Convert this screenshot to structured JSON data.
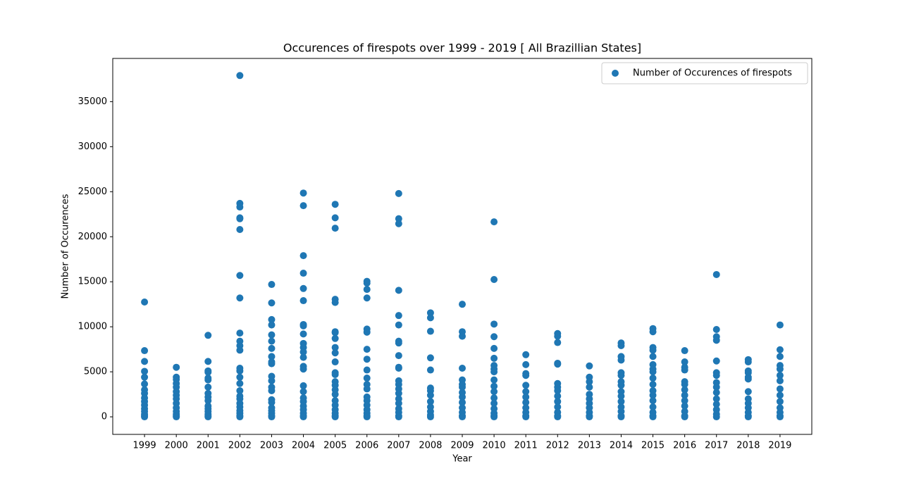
{
  "chart_data": {
    "type": "scatter",
    "title": "Occurences of firespots over 1999 - 2019 [ All Brazillian States]",
    "x_label": "Year",
    "y_label": "Number of Occurences",
    "xlim": [
      1998,
      2020
    ],
    "xticks": [
      1999,
      2000,
      2001,
      2002,
      2003,
      2004,
      2005,
      2006,
      2007,
      2008,
      2009,
      2010,
      2011,
      2012,
      2013,
      2014,
      2015,
      2016,
      2017,
      2018,
      2019
    ],
    "ylim": [
      -1950,
      39800
    ],
    "yticks": [
      0,
      5000,
      10000,
      15000,
      20000,
      25000,
      30000,
      35000
    ],
    "grid": false,
    "legend": "upper right",
    "series": [
      {
        "name": "Number of Occurences of firespots",
        "color": "#1f77b4",
        "x": [
          1999,
          1999,
          1999,
          1999,
          1999,
          1999,
          1999,
          1999,
          1999,
          1999,
          1999,
          1999,
          1999,
          1999,
          1999,
          1999,
          2000,
          2000,
          2000,
          2000,
          2000,
          2000,
          2000,
          2000,
          2000,
          2000,
          2000,
          2000,
          2000,
          2000,
          2001,
          2001,
          2001,
          2001,
          2001,
          2001,
          2001,
          2001,
          2001,
          2001,
          2001,
          2001,
          2001,
          2001,
          2001,
          2001,
          2002,
          2002,
          2002,
          2002,
          2002,
          2002,
          2002,
          2002,
          2002,
          2002,
          2002,
          2002,
          2002,
          2002,
          2002,
          2002,
          2002,
          2002,
          2002,
          2002,
          2002,
          2002,
          2002,
          2002,
          2002,
          2003,
          2003,
          2003,
          2003,
          2003,
          2003,
          2003,
          2003,
          2003,
          2003,
          2003,
          2003,
          2003,
          2003,
          2003,
          2003,
          2003,
          2003,
          2003,
          2003,
          2003,
          2004,
          2004,
          2004,
          2004,
          2004,
          2004,
          2004,
          2004,
          2004,
          2004,
          2004,
          2004,
          2004,
          2004,
          2004,
          2004,
          2004,
          2004,
          2004,
          2004,
          2004,
          2004,
          2004,
          2004,
          2005,
          2005,
          2005,
          2005,
          2005,
          2005,
          2005,
          2005,
          2005,
          2005,
          2005,
          2005,
          2005,
          2005,
          2005,
          2005,
          2005,
          2005,
          2005,
          2005,
          2005,
          2005,
          2005,
          2006,
          2006,
          2006,
          2006,
          2006,
          2006,
          2006,
          2006,
          2006,
          2006,
          2006,
          2006,
          2006,
          2006,
          2006,
          2006,
          2006,
          2006,
          2006,
          2007,
          2007,
          2007,
          2007,
          2007,
          2007,
          2007,
          2007,
          2007,
          2007,
          2007,
          2007,
          2007,
          2007,
          2007,
          2007,
          2007,
          2007,
          2007,
          2007,
          2007,
          2008,
          2008,
          2008,
          2008,
          2008,
          2008,
          2008,
          2008,
          2008,
          2008,
          2008,
          2008,
          2008,
          2009,
          2009,
          2009,
          2009,
          2009,
          2009,
          2009,
          2009,
          2009,
          2009,
          2009,
          2009,
          2009,
          2009,
          2010,
          2010,
          2010,
          2010,
          2010,
          2010,
          2010,
          2010,
          2010,
          2010,
          2010,
          2010,
          2010,
          2010,
          2010,
          2010,
          2010,
          2010,
          2011,
          2011,
          2011,
          2011,
          2011,
          2011,
          2011,
          2011,
          2011,
          2011,
          2011,
          2011,
          2012,
          2012,
          2012,
          2012,
          2012,
          2012,
          2012,
          2012,
          2012,
          2012,
          2012,
          2012,
          2012,
          2012,
          2013,
          2013,
          2013,
          2013,
          2013,
          2013,
          2013,
          2013,
          2013,
          2013,
          2013,
          2014,
          2014,
          2014,
          2014,
          2014,
          2014,
          2014,
          2014,
          2014,
          2014,
          2014,
          2014,
          2014,
          2014,
          2014,
          2015,
          2015,
          2015,
          2015,
          2015,
          2015,
          2015,
          2015,
          2015,
          2015,
          2015,
          2015,
          2015,
          2015,
          2015,
          2015,
          2015,
          2016,
          2016,
          2016,
          2016,
          2016,
          2016,
          2016,
          2016,
          2016,
          2016,
          2016,
          2016,
          2016,
          2017,
          2017,
          2017,
          2017,
          2017,
          2017,
          2017,
          2017,
          2017,
          2017,
          2017,
          2017,
          2017,
          2017,
          2017,
          2018,
          2018,
          2018,
          2018,
          2018,
          2018,
          2018,
          2018,
          2018,
          2018,
          2018,
          2018,
          2018,
          2019,
          2019,
          2019,
          2019,
          2019,
          2019,
          2019,
          2019,
          2019,
          2019,
          2019,
          2019,
          2019,
          2019
        ],
        "values": [
          12750,
          7350,
          6150,
          5050,
          4400,
          3650,
          3000,
          2600,
          2100,
          1700,
          1300,
          900,
          600,
          300,
          100,
          0,
          5500,
          4400,
          4150,
          3700,
          3300,
          2800,
          2400,
          2000,
          1500,
          1000,
          600,
          300,
          100,
          0,
          9050,
          6150,
          5100,
          4950,
          4300,
          4100,
          3300,
          2600,
          2200,
          1800,
          1200,
          900,
          600,
          300,
          100,
          0,
          37900,
          23700,
          23300,
          22100,
          22000,
          20800,
          15700,
          13200,
          9300,
          8400,
          7900,
          7400,
          5400,
          5100,
          4400,
          3700,
          2900,
          2300,
          2000,
          1500,
          1100,
          700,
          400,
          100,
          0,
          14700,
          12650,
          10800,
          10200,
          9100,
          8400,
          7600,
          6700,
          6100,
          5900,
          4500,
          4000,
          3300,
          2900,
          1900,
          1600,
          1000,
          700,
          400,
          100,
          0,
          24850,
          23450,
          17900,
          15950,
          14250,
          12900,
          10250,
          10100,
          9200,
          8150,
          7700,
          7200,
          6600,
          5600,
          5300,
          3450,
          2800,
          2100,
          1700,
          1200,
          800,
          400,
          100,
          0,
          23600,
          22100,
          20950,
          13050,
          12700,
          9450,
          9350,
          8700,
          7700,
          7100,
          6100,
          4900,
          4700,
          3900,
          3500,
          3000,
          2500,
          1800,
          1300,
          800,
          400,
          100,
          0,
          15050,
          14850,
          14150,
          13200,
          9750,
          9400,
          7500,
          6400,
          5200,
          4300,
          3600,
          3100,
          2200,
          1800,
          1300,
          800,
          400,
          100,
          0,
          24800,
          22000,
          21450,
          14050,
          11250,
          10200,
          8400,
          8200,
          6800,
          5500,
          5400,
          4000,
          3600,
          3100,
          2600,
          2000,
          1500,
          900,
          500,
          100,
          0,
          11550,
          11000,
          9500,
          6550,
          5200,
          3200,
          2900,
          2400,
          1700,
          1100,
          600,
          200,
          0,
          12500,
          9450,
          8950,
          5400,
          4100,
          3600,
          3300,
          2700,
          2200,
          1600,
          1000,
          500,
          100,
          0,
          21650,
          15250,
          10300,
          8900,
          7600,
          6500,
          5700,
          5300,
          5000,
          4100,
          3400,
          2800,
          2100,
          1500,
          900,
          400,
          100,
          0,
          6900,
          5800,
          4800,
          4600,
          3500,
          2800,
          2200,
          1600,
          1000,
          500,
          100,
          0,
          9250,
          8950,
          8250,
          5950,
          5850,
          3700,
          3300,
          2900,
          2300,
          1700,
          1100,
          500,
          100,
          0,
          5650,
          4400,
          3900,
          3300,
          2500,
          2000,
          1500,
          1000,
          500,
          100,
          0,
          8200,
          7900,
          6700,
          6300,
          4900,
          4600,
          3900,
          3500,
          2800,
          2300,
          1700,
          1100,
          600,
          100,
          0,
          9800,
          9450,
          7700,
          7400,
          6700,
          5800,
          5300,
          5000,
          4300,
          3600,
          2900,
          2400,
          1800,
          1100,
          500,
          100,
          0,
          7350,
          6100,
          5500,
          5200,
          3900,
          3600,
          3000,
          2400,
          1800,
          1200,
          600,
          100,
          0,
          15800,
          9700,
          8900,
          8500,
          6200,
          4900,
          4600,
          3800,
          3300,
          2700,
          2000,
          1400,
          800,
          300,
          0,
          6350,
          6100,
          5100,
          4900,
          4400,
          4200,
          2800,
          2000,
          1500,
          1000,
          500,
          100,
          0,
          10200,
          7450,
          6700,
          5700,
          5300,
          4600,
          4000,
          3100,
          2400,
          1700,
          1000,
          500,
          100,
          0
        ]
      }
    ]
  }
}
